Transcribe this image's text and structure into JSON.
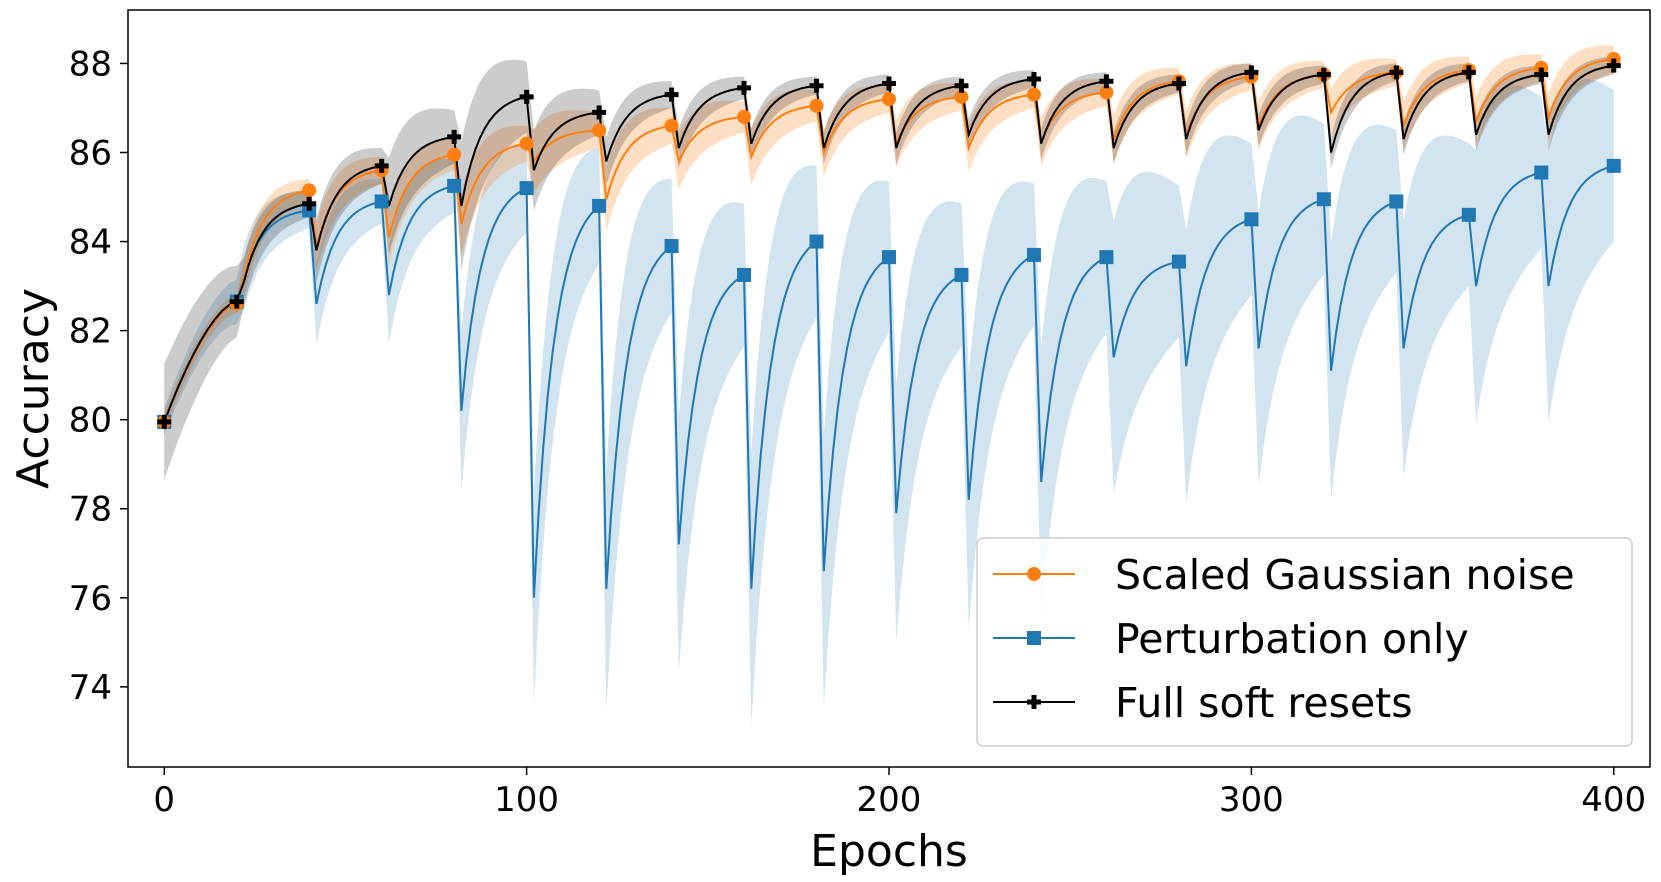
{
  "chart_data": {
    "type": "line",
    "title": "",
    "xlabel": "Epochs",
    "ylabel": "Accuracy",
    "xlim": [
      -10,
      410
    ],
    "ylim": [
      72.2,
      89.2
    ],
    "xticks": [
      0,
      100,
      200,
      300,
      400
    ],
    "yticks": [
      74,
      76,
      78,
      80,
      82,
      84,
      86,
      88
    ],
    "grid": false,
    "legend_position": "bottom-right",
    "reset_interval": 20,
    "marker_epochs": [
      0,
      20,
      40,
      60,
      80,
      100,
      120,
      140,
      160,
      180,
      200,
      220,
      240,
      260,
      280,
      300,
      320,
      340,
      360,
      380,
      400
    ],
    "series": [
      {
        "name": "Scaled Gaussian noise",
        "color": "#ff7f0e",
        "band_color": "#ff7f0e",
        "band_opacity": 0.25,
        "marker": "circle",
        "peaks": [
          79.95,
          82.6,
          85.15,
          85.6,
          85.95,
          86.2,
          86.5,
          86.6,
          86.8,
          87.05,
          87.2,
          87.25,
          87.3,
          87.35,
          87.6,
          87.7,
          87.75,
          87.8,
          87.85,
          87.9,
          88.1
        ],
        "dips": [
          null,
          null,
          83.2,
          83.9,
          84.1,
          84.4,
          85.8,
          84.95,
          85.8,
          85.9,
          86.0,
          86.2,
          86.1,
          86.25,
          86.3,
          86.4,
          86.6,
          86.9,
          86.6,
          86.7,
          86.8
        ],
        "band_half_width": [
          0.2,
          0.2,
          0.25,
          0.3,
          0.35,
          0.4,
          0.4,
          0.4,
          0.35,
          0.35,
          0.3,
          0.3,
          0.3,
          0.3,
          0.3,
          0.3,
          0.3,
          0.3,
          0.3,
          0.3,
          0.3
        ]
      },
      {
        "name": "Perturbation only",
        "color": "#1f77b4",
        "band_color": "#1f77b4",
        "band_opacity": 0.2,
        "marker": "square",
        "peaks": [
          79.95,
          82.65,
          84.7,
          84.9,
          85.25,
          85.2,
          84.8,
          83.9,
          83.25,
          84.0,
          83.65,
          83.25,
          83.7,
          83.65,
          83.55,
          84.5,
          84.95,
          84.9,
          84.6,
          85.55,
          85.7
        ],
        "dips": [
          null,
          null,
          83.2,
          82.6,
          82.8,
          80.2,
          76.0,
          76.2,
          77.2,
          76.2,
          76.6,
          77.9,
          78.2,
          78.6,
          81.4,
          81.2,
          81.6,
          81.1,
          81.6,
          83.0,
          83.0
        ],
        "band_half_width": [
          0.3,
          0.5,
          0.4,
          0.5,
          0.6,
          1.0,
          1.3,
          1.5,
          1.6,
          1.7,
          1.7,
          1.6,
          1.6,
          1.7,
          1.7,
          1.7,
          1.7,
          1.6,
          1.6,
          1.7,
          1.7
        ]
      },
      {
        "name": "Full soft resets",
        "color": "#000000",
        "band_color": "#000000",
        "band_opacity": 0.2,
        "marker": "plus",
        "peaks": [
          79.95,
          82.65,
          84.85,
          85.7,
          86.35,
          87.25,
          86.9,
          87.3,
          87.45,
          87.5,
          87.55,
          87.5,
          87.65,
          87.6,
          87.55,
          87.8,
          87.75,
          87.8,
          87.8,
          87.75,
          87.95
        ],
        "dips": [
          null,
          null,
          83.1,
          83.8,
          84.8,
          84.8,
          85.6,
          85.8,
          86.1,
          86.2,
          86.1,
          86.1,
          86.4,
          86.2,
          86.1,
          86.3,
          86.5,
          86.0,
          86.3,
          86.4,
          86.4
        ],
        "band_half_width": [
          1.3,
          0.8,
          0.3,
          0.4,
          0.6,
          0.8,
          0.5,
          0.3,
          0.25,
          0.2,
          0.2,
          0.2,
          0.2,
          0.2,
          0.2,
          0.2,
          0.2,
          0.2,
          0.2,
          0.2,
          0.2
        ]
      }
    ]
  }
}
